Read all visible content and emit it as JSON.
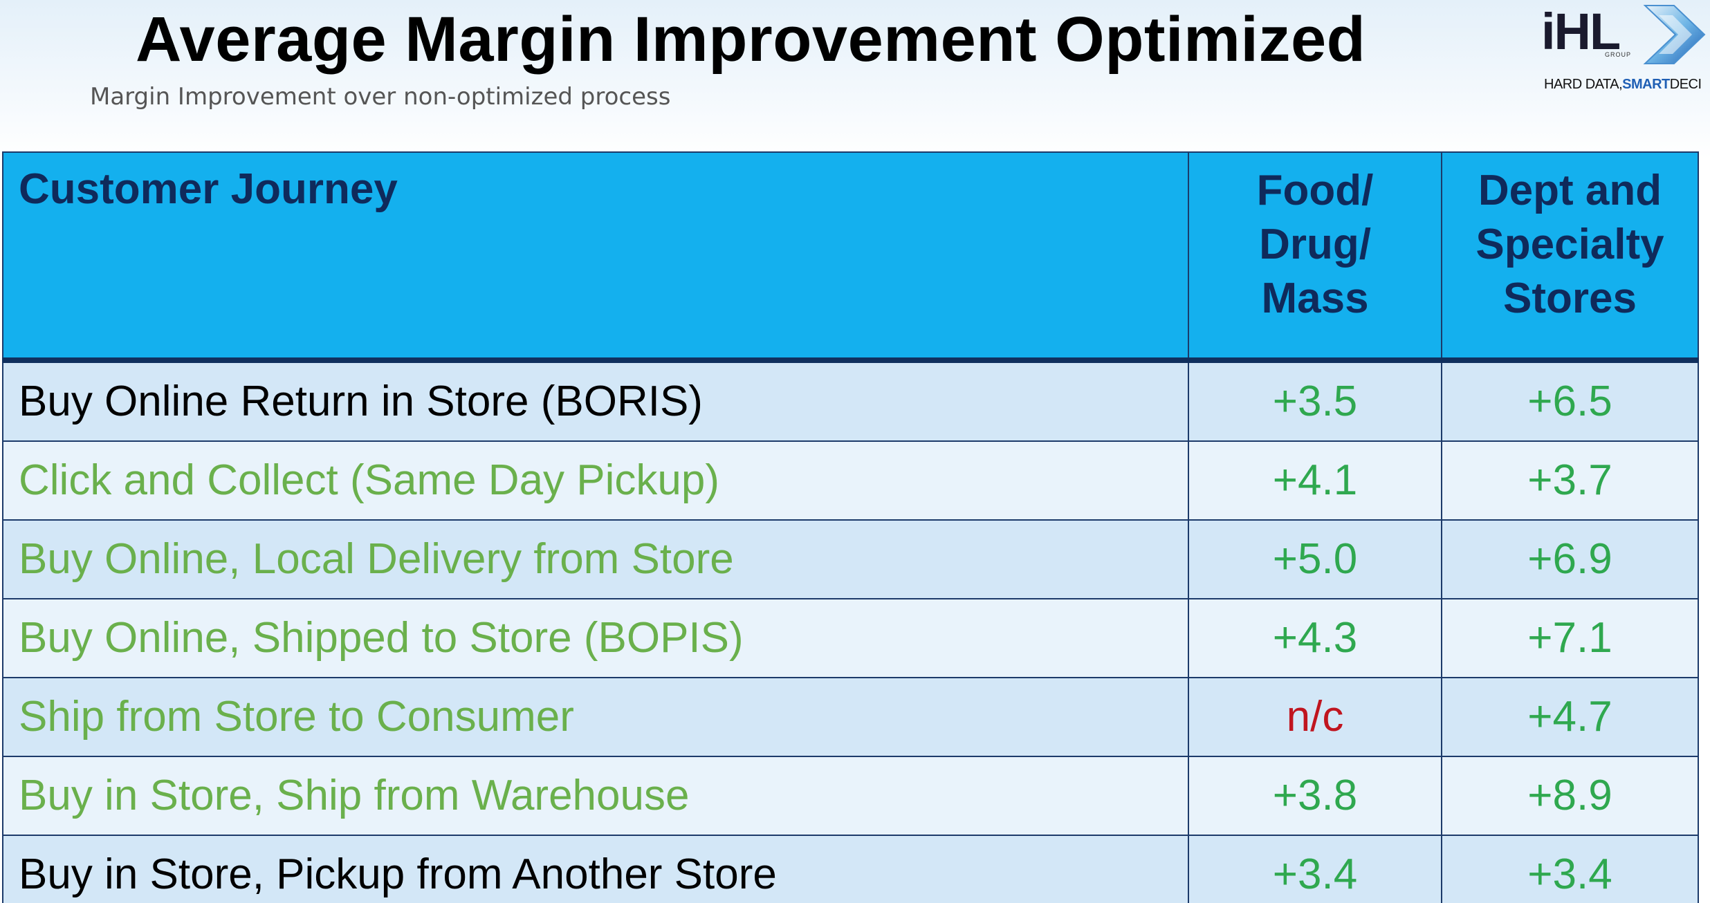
{
  "header": {
    "title": "Average Margin Improvement Optimized",
    "subtitle": "Margin Improvement over non-optimized process"
  },
  "logo": {
    "mark": "iHL",
    "group": "GROUP",
    "tagline_prefix": "HARD DATA,",
    "tagline_emphasis": "SMART",
    "tagline_suffix": "DECI"
  },
  "colors": {
    "header_background": "#14b0ee",
    "header_text": "#0f2a5b",
    "green_text": "#6ab04c",
    "value_green": "#2fa84f",
    "value_red": "#c0151f",
    "black_text": "#000000"
  },
  "table": {
    "columns": [
      "Customer Journey",
      "Food/\nDrug/\nMass",
      "Dept and\nSpecialty\nStores"
    ],
    "rows": [
      {
        "journey": "Buy Online Return in Store (BORIS)",
        "journey_color": "black",
        "food_drug_mass": "+3.5",
        "fdm_color": "green",
        "dept_specialty": "+6.5",
        "ds_color": "green"
      },
      {
        "journey": "Click and Collect (Same Day Pickup)",
        "journey_color": "green",
        "food_drug_mass": "+4.1",
        "fdm_color": "green",
        "dept_specialty": "+3.7",
        "ds_color": "green"
      },
      {
        "journey": "Buy Online, Local Delivery from Store",
        "journey_color": "green",
        "food_drug_mass": "+5.0",
        "fdm_color": "green",
        "dept_specialty": "+6.9",
        "ds_color": "green"
      },
      {
        "journey": "Buy Online, Shipped to Store (BOPIS)",
        "journey_color": "green",
        "food_drug_mass": "+4.3",
        "fdm_color": "green",
        "dept_specialty": "+7.1",
        "ds_color": "green"
      },
      {
        "journey": "Ship from Store to Consumer",
        "journey_color": "green",
        "food_drug_mass": "n/c",
        "fdm_color": "red",
        "dept_specialty": "+4.7",
        "ds_color": "green"
      },
      {
        "journey": "Buy in Store, Ship from Warehouse",
        "journey_color": "green",
        "food_drug_mass": "+3.8",
        "fdm_color": "green",
        "dept_specialty": "+8.9",
        "ds_color": "green"
      },
      {
        "journey": "Buy in Store, Pickup from Another Store",
        "journey_color": "black",
        "food_drug_mass": "+3.4",
        "fdm_color": "green",
        "dept_specialty": "+3.4",
        "ds_color": "green"
      }
    ]
  }
}
